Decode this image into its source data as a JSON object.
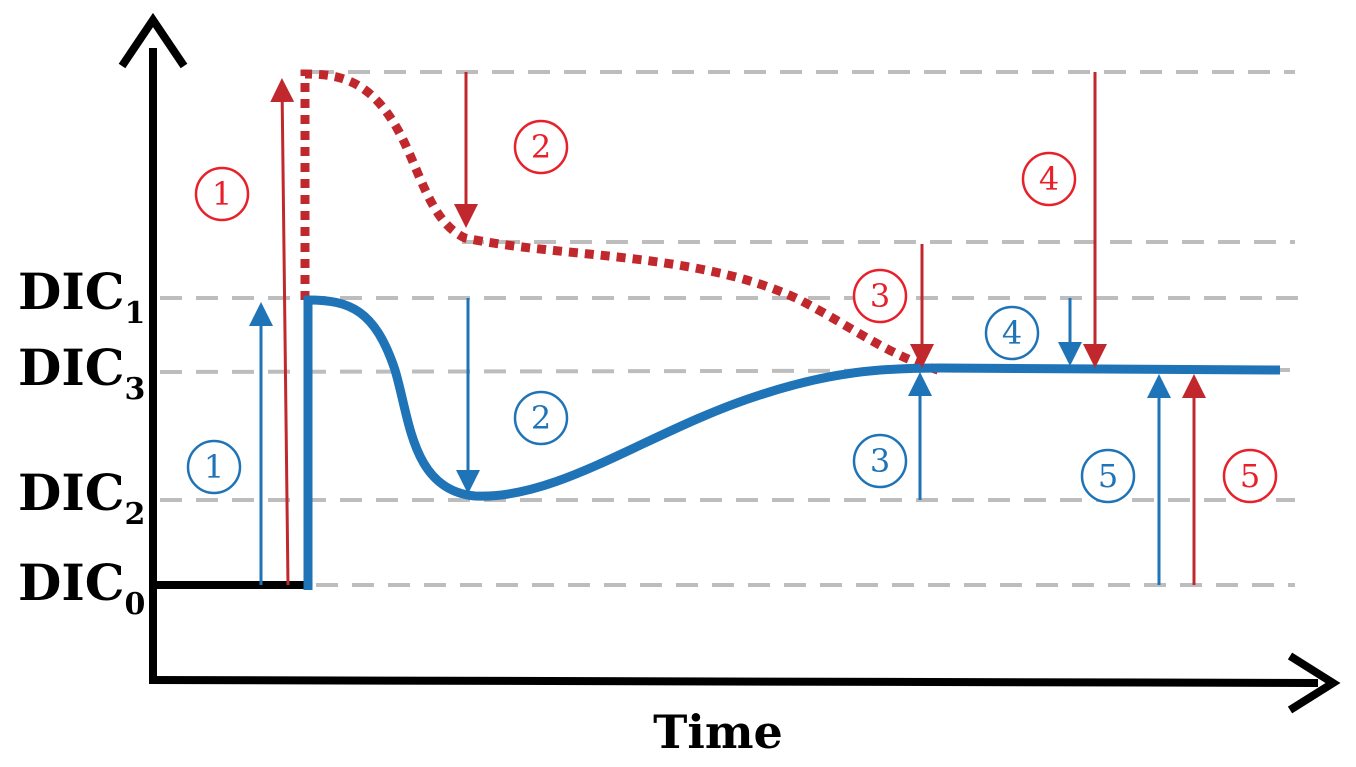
{
  "axes": {
    "x_label": "Time"
  },
  "levels": [
    {
      "name": "DIC",
      "sub": "1"
    },
    {
      "name": "DIC",
      "sub": "3"
    },
    {
      "name": "DIC",
      "sub": "2"
    },
    {
      "name": "DIC",
      "sub": "0"
    }
  ],
  "markers": {
    "blue": [
      "1",
      "2",
      "3",
      "4",
      "5"
    ],
    "red": [
      "1",
      "2",
      "3",
      "4",
      "5"
    ]
  },
  "colors": {
    "blue": "#1f73b7",
    "red": "#c0282d",
    "red_text": "#e8202a",
    "grid": "#bdbdbd",
    "axis": "#000000"
  }
}
